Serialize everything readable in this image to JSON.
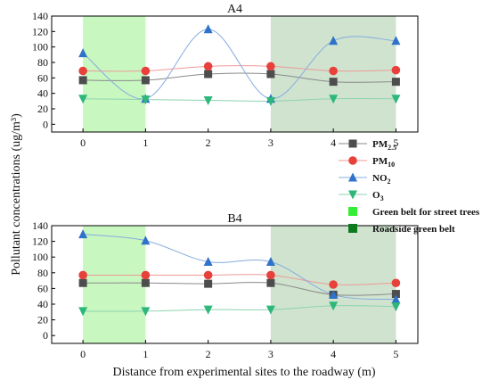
{
  "chart_data": [
    {
      "type": "line",
      "title": "A4",
      "x": [
        0,
        1,
        2,
        3,
        4,
        5
      ],
      "xlim": [
        -0.5,
        5.35
      ],
      "ylim": [
        -10,
        140
      ],
      "yticks": [
        0,
        20,
        40,
        60,
        80,
        100,
        120,
        140
      ],
      "xticks": [
        0,
        1,
        2,
        3,
        4,
        5
      ],
      "shaded_regions": [
        {
          "ref": "green_belt_street_trees",
          "x_range": [
            0,
            1
          ]
        },
        {
          "ref": "roadside_green_belt",
          "x_range": [
            3,
            5
          ]
        }
      ],
      "series": [
        {
          "name": "PM2.5",
          "values": [
            57,
            57,
            65,
            65,
            55,
            55
          ]
        },
        {
          "name": "PM10",
          "values": [
            69,
            69,
            75,
            75,
            69,
            70
          ]
        },
        {
          "name": "NO2",
          "values": [
            92,
            33,
            123,
            33,
            108,
            108
          ]
        },
        {
          "name": "O3",
          "values": [
            33,
            32,
            31,
            30,
            33,
            33
          ]
        }
      ]
    },
    {
      "type": "line",
      "title": "B4",
      "x": [
        0,
        1,
        2,
        3,
        4,
        5
      ],
      "xlim": [
        -0.5,
        5.35
      ],
      "ylim": [
        -10,
        140
      ],
      "yticks": [
        0,
        20,
        40,
        60,
        80,
        100,
        120,
        140
      ],
      "xticks": [
        0,
        1,
        2,
        3,
        4,
        5
      ],
      "shaded_regions": [
        {
          "ref": "green_belt_street_trees",
          "x_range": [
            0,
            1
          ]
        },
        {
          "ref": "roadside_green_belt",
          "x_range": [
            3,
            5
          ]
        }
      ],
      "series": [
        {
          "name": "PM2.5",
          "values": [
            67,
            67,
            66,
            67,
            52,
            53
          ]
        },
        {
          "name": "PM10",
          "values": [
            77,
            77,
            77,
            77,
            65,
            67
          ]
        },
        {
          "name": "NO2",
          "values": [
            129,
            121,
            94,
            94,
            52,
            46
          ]
        },
        {
          "name": "O3",
          "values": [
            31,
            31,
            33,
            33,
            38,
            37
          ]
        }
      ]
    }
  ],
  "series_styles": [
    {
      "name": "PM2.5",
      "marker": "square",
      "color": "#4d4d4d",
      "line_color": "#8a8a8a",
      "label_main": "PM",
      "label_sub": "2.5"
    },
    {
      "name": "PM10",
      "marker": "circle",
      "color": "#e8403a",
      "line_color": "#ef9a97",
      "label_main": "PM",
      "label_sub": "10"
    },
    {
      "name": "NO2",
      "marker": "triangle-up",
      "color": "#2f72c9",
      "line_color": "#86acdf",
      "label_main": "NO",
      "label_sub": "2"
    },
    {
      "name": "O3",
      "marker": "triangle-down",
      "color": "#2db77a",
      "line_color": "#8ed3b2",
      "label_main": "O",
      "label_sub": "3"
    }
  ],
  "shade_styles": {
    "green_belt_street_trees": {
      "label": "Green belt for street trees",
      "fill": "#c8f7c0",
      "swatch": "#33ee33"
    },
    "roadside_green_belt": {
      "label": "Roadside green belt",
      "fill": "#cfe3cf",
      "swatch": "#0e7a1e"
    }
  },
  "y_axis_title": "Pollutant concentrations (ug/m³)",
  "x_axis_title": "Distance from experimental sites to the roadway (m)"
}
